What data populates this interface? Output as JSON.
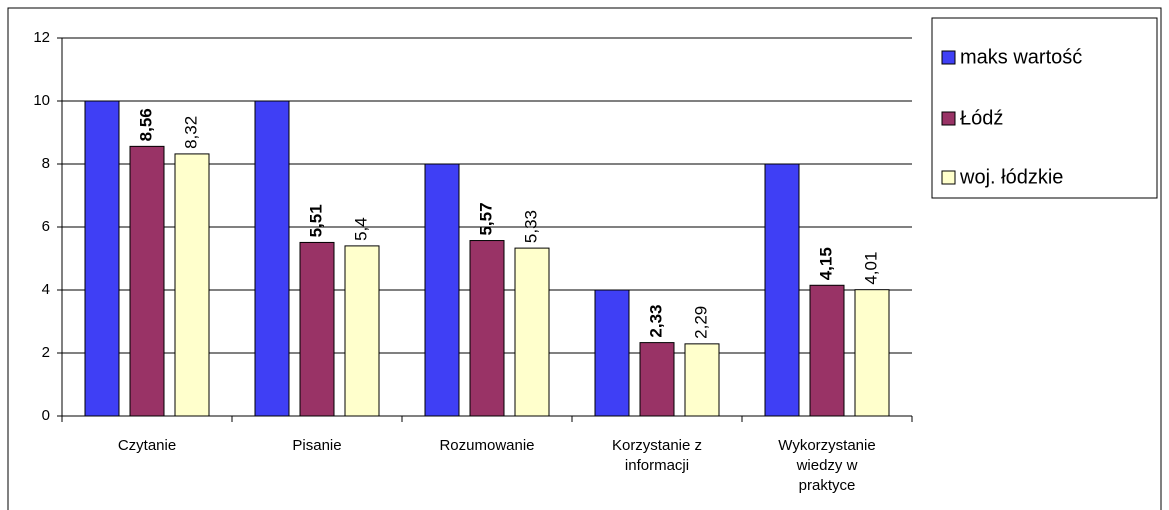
{
  "chart_data": {
    "type": "bar",
    "categories": [
      "Czytanie",
      "Pisanie",
      "Rozumowanie",
      "Korzystanie z informacji",
      "Wykorzystanie wiedzy w praktyce"
    ],
    "series": [
      {
        "name": "maks wartość",
        "color": "#3f3ff5",
        "values": [
          10,
          10,
          8,
          4,
          8
        ]
      },
      {
        "name": "Łódź",
        "color": "#993366",
        "values": [
          8.56,
          5.51,
          5.57,
          2.33,
          4.15
        ],
        "value_labels": [
          "8,56",
          "5,51",
          "5,57",
          "2,33",
          "4,15"
        ],
        "bold_labels": true
      },
      {
        "name": "woj. łódzkie",
        "color": "#ffffcc",
        "values": [
          8.32,
          5.4,
          5.33,
          2.29,
          4.01
        ],
        "value_labels": [
          "8,32",
          "5,4",
          "5,33",
          "2,29",
          "4,01"
        ]
      }
    ],
    "ylim": [
      0,
      12
    ],
    "yticks": [
      0,
      2,
      4,
      6,
      8,
      10,
      12
    ],
    "grid": true,
    "legend": "right"
  }
}
